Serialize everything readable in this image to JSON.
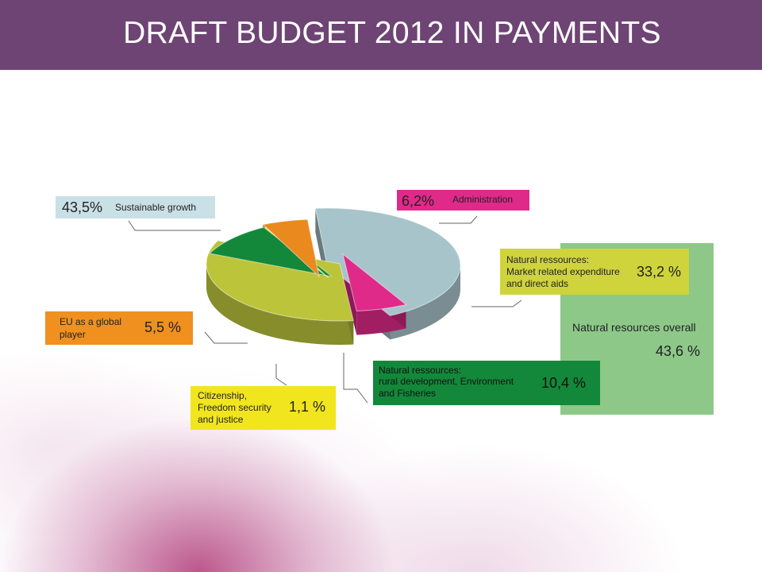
{
  "title": "DRAFT BUDGET 2012 IN PAYMENTS",
  "chart_data": {
    "type": "pie",
    "slices": [
      {
        "label": "Sustainable growth",
        "value": 43.5,
        "value_label": "43,5%",
        "color": "#a8c4cb"
      },
      {
        "label": "Administration",
        "value": 6.2,
        "value_label": "6,2%",
        "color": "#e02a8a"
      },
      {
        "label": "Natural ressources: Market related expenditure and direct aids",
        "value": 33.2,
        "value_label": "33,2 %",
        "color": "#bcc43a"
      },
      {
        "label": "Natural ressources: rural development, Environment and Fisheries",
        "value": 10.4,
        "value_label": "10,4 %",
        "color": "#13883a"
      },
      {
        "label": "Citizenship, Freedom security and justice",
        "value": 1.1,
        "value_label": "1,1 %",
        "color": "#e7e03a"
      },
      {
        "label": "EU as a global player",
        "value": 5.5,
        "value_label": "5,5 %",
        "color": "#ea8a1e"
      }
    ],
    "group": {
      "label": "Natural resources overall",
      "value_label": "43,6 %",
      "color": "#8dc889"
    }
  },
  "labels": {
    "sustainable": {
      "pct": "43,5%",
      "line1": "Sustainable growth"
    },
    "admin": {
      "pct": "6,2%",
      "line1": "Administration"
    },
    "market": {
      "pct": "33,2 %",
      "line1": "Natural ressources:",
      "line2": "Market related expenditure",
      "line3": "and direct aids"
    },
    "rural": {
      "pct": "10,4 %",
      "line1": "Natural ressources:",
      "line2": "rural development, Environment",
      "line3": "and Fisheries"
    },
    "citizen": {
      "pct": "1,1 %",
      "line1": "Citizenship,",
      "line2": "Freedom security",
      "line3": "and justice"
    },
    "global": {
      "pct": "5,5 %",
      "line1": "EU as a global",
      "line2": "player"
    },
    "overall": {
      "line1": "Natural resources overall",
      "pct": "43,6 %"
    }
  }
}
